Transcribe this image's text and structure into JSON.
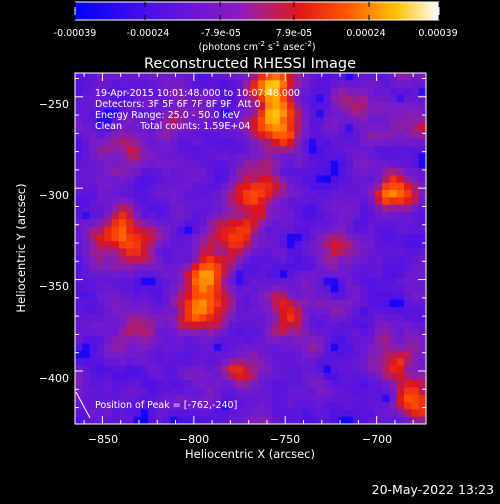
{
  "colorbar": {
    "tick_labels": [
      "-0.00039",
      "-0.00024",
      "-7.9e-05",
      "7.9e-05",
      "0.00024",
      "0.00039"
    ],
    "tick_values": [
      -0.00039,
      -0.00024,
      -7.9e-05,
      7.9e-05,
      0.00024,
      0.00039
    ],
    "range": [
      -0.00039,
      0.00039
    ],
    "unit_main": "(photons cm",
    "unit_exp1": "-2",
    "unit_s": " s",
    "unit_exp2": "-1",
    "unit_asec": " asec",
    "unit_exp3": "-2",
    "unit_close": ")"
  },
  "chart_data": {
    "type": "heatmap",
    "title": "Reconstructed RHESSI Image",
    "xlabel": "Heliocentric X (arcsec)",
    "ylabel": "Heliocentric Y (arcsec)",
    "xlim": [
      -865,
      -673
    ],
    "ylim": [
      -429,
      -237
    ],
    "xticks": [
      -850,
      -800,
      -750,
      -700
    ],
    "yticks": [
      -250,
      -300,
      -350,
      -400
    ],
    "xtick_labels": [
      "−850",
      "−800",
      "−750",
      "−700"
    ],
    "ytick_labels": [
      "−250",
      "−300",
      "−350",
      "−400"
    ],
    "value_range": [
      -0.00039,
      0.00039
    ],
    "annotations": [
      "19-Apr-2015 10:01:48.000 to 10:07:48.000",
      "Detectors: 3F 5F 6F 7F 8F 9F  Att 0",
      "Energy Range: 25.0 - 50.0 keV",
      "Clean      Total counts: 1.59E+04"
    ],
    "peak_label": "Position of Peak = [-762,-240]",
    "peak_position": [
      -762,
      -240
    ],
    "sources": [
      {
        "x": -756,
        "y": -246,
        "level": 1.0
      },
      {
        "x": -755,
        "y": -268,
        "level": 0.72
      },
      {
        "x": -763,
        "y": -300,
        "level": 0.62
      },
      {
        "x": -778,
        "y": -322,
        "level": 0.58
      },
      {
        "x": -791,
        "y": -348,
        "level": 0.62
      },
      {
        "x": -796,
        "y": -367,
        "level": 0.92
      },
      {
        "x": -832,
        "y": -330,
        "level": 0.55
      },
      {
        "x": -846,
        "y": -325,
        "level": 0.45
      },
      {
        "x": -834,
        "y": -276,
        "level": 0.4
      },
      {
        "x": -690,
        "y": -302,
        "level": 0.55
      },
      {
        "x": -678,
        "y": -262,
        "level": 0.5
      },
      {
        "x": -688,
        "y": -395,
        "level": 0.55
      },
      {
        "x": -678,
        "y": -418,
        "level": 0.65
      },
      {
        "x": -748,
        "y": -370,
        "level": 0.5
      },
      {
        "x": -723,
        "y": -335,
        "level": 0.38
      },
      {
        "x": -771,
        "y": -402,
        "level": 0.38
      },
      {
        "x": -835,
        "y": -375,
        "level": 0.35
      },
      {
        "x": -713,
        "y": -255,
        "level": 0.35
      },
      {
        "x": -810,
        "y": -258,
        "level": 0.35
      }
    ]
  },
  "footer_timestamp": "20-May-2022 13:23"
}
